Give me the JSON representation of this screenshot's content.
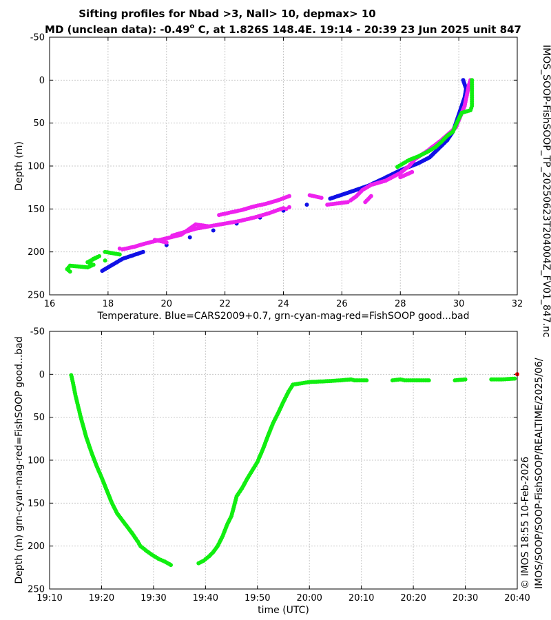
{
  "title_line1": "Sifting profiles for Nbad >3, Nall> 10, depmax> 10",
  "title_line2_pre": "MD (unclean data): -0.49",
  "title_line2_deg": "o",
  "title_line2_post": " C, at 1.826S 148.4E. 19:14 - 20:39 23 Jun 2025 unit 847",
  "side_text_1": "IMOS_SOOP-FishSOOP_TP_20250623T204004Z_FV01_847.nc",
  "side_text_2": "© IMOS 18:55 10-Feb-2026",
  "side_text_3": "IMOS/SOOP/SOOP-FishSOOP/REALTIME/2025/06/",
  "colors": {
    "blue": "#1010e6",
    "magenta": "#ee22ee",
    "green": "#11ee11",
    "red": "#ff0000",
    "grid": "#c8c8c8"
  },
  "chart_data": [
    {
      "type": "scatter",
      "xlabel": "Temperature. Blue=CARS2009+0.7, grn-cyan-mag-red=FishSOOP good...bad",
      "ylabel": "Depth (m)",
      "xlim": [
        16,
        32
      ],
      "ylim": [
        250,
        -50
      ],
      "y_reversed": true,
      "grid": true,
      "xticks": [
        "16",
        "18",
        "20",
        "22",
        "24",
        "26",
        "28",
        "30",
        "32"
      ],
      "yticks": [
        "-50",
        "0",
        "50",
        "100",
        "150",
        "200",
        "250"
      ],
      "series": [
        {
          "color": "blue",
          "points": [
            [
              30.15,
              0
            ],
            [
              30.25,
              10
            ],
            [
              30.2,
              20
            ],
            [
              30.1,
              30
            ],
            [
              30.0,
              40
            ],
            [
              29.9,
              50
            ],
            [
              29.8,
              60
            ],
            [
              29.6,
              70
            ],
            [
              29.3,
              80
            ],
            [
              29.0,
              90
            ],
            [
              28.6,
              97
            ],
            [
              28.0,
              105
            ],
            [
              27.4,
              115
            ],
            [
              26.9,
              123
            ],
            [
              26.3,
              130
            ],
            [
              25.6,
              138
            ],
            [
              24.8,
              145
            ],
            [
              24.0,
              152
            ],
            [
              23.2,
              160
            ],
            [
              22.4,
              167
            ],
            [
              21.6,
              175
            ],
            [
              20.8,
              183
            ],
            [
              20.0,
              192
            ],
            [
              19.2,
              200
            ],
            [
              18.5,
              208
            ],
            [
              17.8,
              222
            ]
          ]
        },
        {
          "color": "magenta",
          "points": [
            [
              30.4,
              0
            ],
            [
              30.35,
              5
            ],
            [
              30.2,
              30
            ],
            [
              29.9,
              55
            ],
            [
              29.4,
              70
            ],
            [
              28.9,
              83
            ],
            [
              28.5,
              92
            ],
            [
              28.3,
              100
            ],
            [
              28.0,
              108
            ],
            [
              27.5,
              117
            ],
            [
              27.0,
              122
            ],
            [
              26.7,
              128
            ],
            [
              26.5,
              135
            ],
            [
              26.3,
              140
            ],
            [
              26.2,
              142
            ],
            [
              25.5,
              145
            ],
            [
              27.0,
              135
            ],
            [
              26.8,
              142
            ],
            [
              28.4,
              107
            ],
            [
              28.0,
              113
            ],
            [
              24.2,
              135
            ],
            [
              23.8,
              140
            ],
            [
              23.4,
              144
            ],
            [
              23.0,
              147
            ],
            [
              22.6,
              151
            ],
            [
              22.2,
              154
            ],
            [
              21.8,
              157
            ],
            [
              24.0,
              149
            ],
            [
              23.5,
              155
            ],
            [
              23.0,
              160
            ],
            [
              22.5,
              164
            ],
            [
              22.0,
              167
            ],
            [
              21.5,
              170
            ],
            [
              21.0,
              173
            ],
            [
              20.6,
              177
            ],
            [
              20.2,
              181
            ],
            [
              24.9,
              134
            ],
            [
              25.3,
              137
            ],
            [
              21.4,
              170
            ],
            [
              21.0,
              168
            ],
            [
              20.5,
              180
            ],
            [
              19.9,
              185
            ],
            [
              19.3,
              190
            ],
            [
              18.9,
              194
            ],
            [
              18.5,
              197
            ],
            [
              18.4,
              196
            ],
            [
              19.6,
              186
            ],
            [
              20.0,
              189
            ],
            [
              24.1,
              150
            ],
            [
              24.2,
              148
            ]
          ]
        },
        {
          "color": "green",
          "points": [
            [
              30.45,
              0
            ],
            [
              30.45,
              10
            ],
            [
              30.45,
              20
            ],
            [
              30.45,
              30
            ],
            [
              30.4,
              35
            ],
            [
              30.1,
              38
            ],
            [
              29.9,
              52
            ],
            [
              29.8,
              60
            ],
            [
              29.6,
              65
            ],
            [
              29.4,
              72
            ],
            [
              29.2,
              78
            ],
            [
              28.9,
              84
            ],
            [
              28.6,
              89
            ],
            [
              28.3,
              93
            ],
            [
              28.1,
              97
            ],
            [
              27.9,
              101
            ],
            [
              17.9,
              200
            ],
            [
              18.4,
              203
            ],
            [
              17.5,
              208
            ],
            [
              17.7,
              205
            ],
            [
              17.3,
              212
            ],
            [
              17.5,
              215
            ],
            [
              17.3,
              218
            ],
            [
              16.7,
              216
            ],
            [
              16.6,
              220
            ],
            [
              16.7,
              223
            ],
            [
              17.9,
              210
            ]
          ]
        }
      ]
    },
    {
      "type": "scatter",
      "xlabel": "time (UTC)",
      "ylabel": "Depth (m) grn-cyan-mag-red=FishSOOP good...bad",
      "xlim": [
        "19:10",
        "20:40"
      ],
      "ylim": [
        250,
        -50
      ],
      "y_reversed": true,
      "grid": true,
      "xticks": [
        "19:10",
        "19:20",
        "19:30",
        "19:40",
        "19:50",
        "20:00",
        "20:10",
        "20:20",
        "20:30",
        "20:40"
      ],
      "yticks": [
        "-50",
        "0",
        "50",
        "100",
        "150",
        "200",
        "250"
      ],
      "series": [
        {
          "color": "green",
          "points": [
            [
              "19:14:10",
              1
            ],
            [
              "19:14:30",
              10
            ],
            [
              "19:15:00",
              25
            ],
            [
              "19:16:00",
              50
            ],
            [
              "19:17:00",
              72
            ],
            [
              "19:18:00",
              90
            ],
            [
              "19:19:00",
              106
            ],
            [
              "19:20:00",
              120
            ],
            [
              "19:21:00",
              135
            ],
            [
              "19:22:00",
              150
            ],
            [
              "19:23:00",
              162
            ],
            [
              "19:24:00",
              170
            ],
            [
              "19:25:00",
              178
            ],
            [
              "19:26:00",
              186
            ],
            [
              "19:27:00",
              195
            ],
            [
              "19:27:30",
              200
            ],
            [
              "19:28:30",
              205
            ],
            [
              "19:29:40",
              210
            ],
            [
              "19:31:00",
              215
            ],
            [
              "19:32:10",
              218
            ],
            [
              "19:33:20",
              222
            ],
            [
              "19:38:40",
              220
            ],
            [
              "19:39:40",
              217
            ],
            [
              "19:40:40",
              212
            ],
            [
              "19:41:30",
              207
            ],
            [
              "19:42:20",
              200
            ],
            [
              "19:43:20",
              188
            ],
            [
              "19:44:10",
              175
            ],
            [
              "19:45:00",
              165
            ],
            [
              "19:46:00",
              142
            ],
            [
              "19:47:00",
              133
            ],
            [
              "19:48:00",
              122
            ],
            [
              "19:49:00",
              112
            ],
            [
              "19:50:00",
              102
            ],
            [
              "19:51:00",
              88
            ],
            [
              "19:52:00",
              72
            ],
            [
              "19:53:00",
              57
            ],
            [
              "19:54:00",
              45
            ],
            [
              "19:55:00",
              32
            ],
            [
              "19:56:00",
              20
            ],
            [
              "19:56:50",
              12
            ],
            [
              "20:00:00",
              9
            ],
            [
              "20:03:30",
              8
            ],
            [
              "20:06:00",
              7
            ],
            [
              "20:08:00",
              6
            ],
            [
              "20:08:40",
              7
            ],
            [
              "20:11:00",
              7
            ],
            [
              "20:16:00",
              7
            ],
            [
              "20:17:30",
              6
            ],
            [
              "20:18:20",
              7
            ],
            [
              "20:19:30",
              7
            ],
            [
              "20:23:00",
              7
            ],
            [
              "20:28:00",
              7
            ],
            [
              "20:30:00",
              6
            ],
            [
              "20:35:00",
              6
            ],
            [
              "20:37:00",
              6
            ],
            [
              "20:39:30",
              5
            ]
          ]
        },
        {
          "color": "red",
          "points": [
            [
              "20:40:00",
              0
            ]
          ]
        }
      ]
    }
  ]
}
